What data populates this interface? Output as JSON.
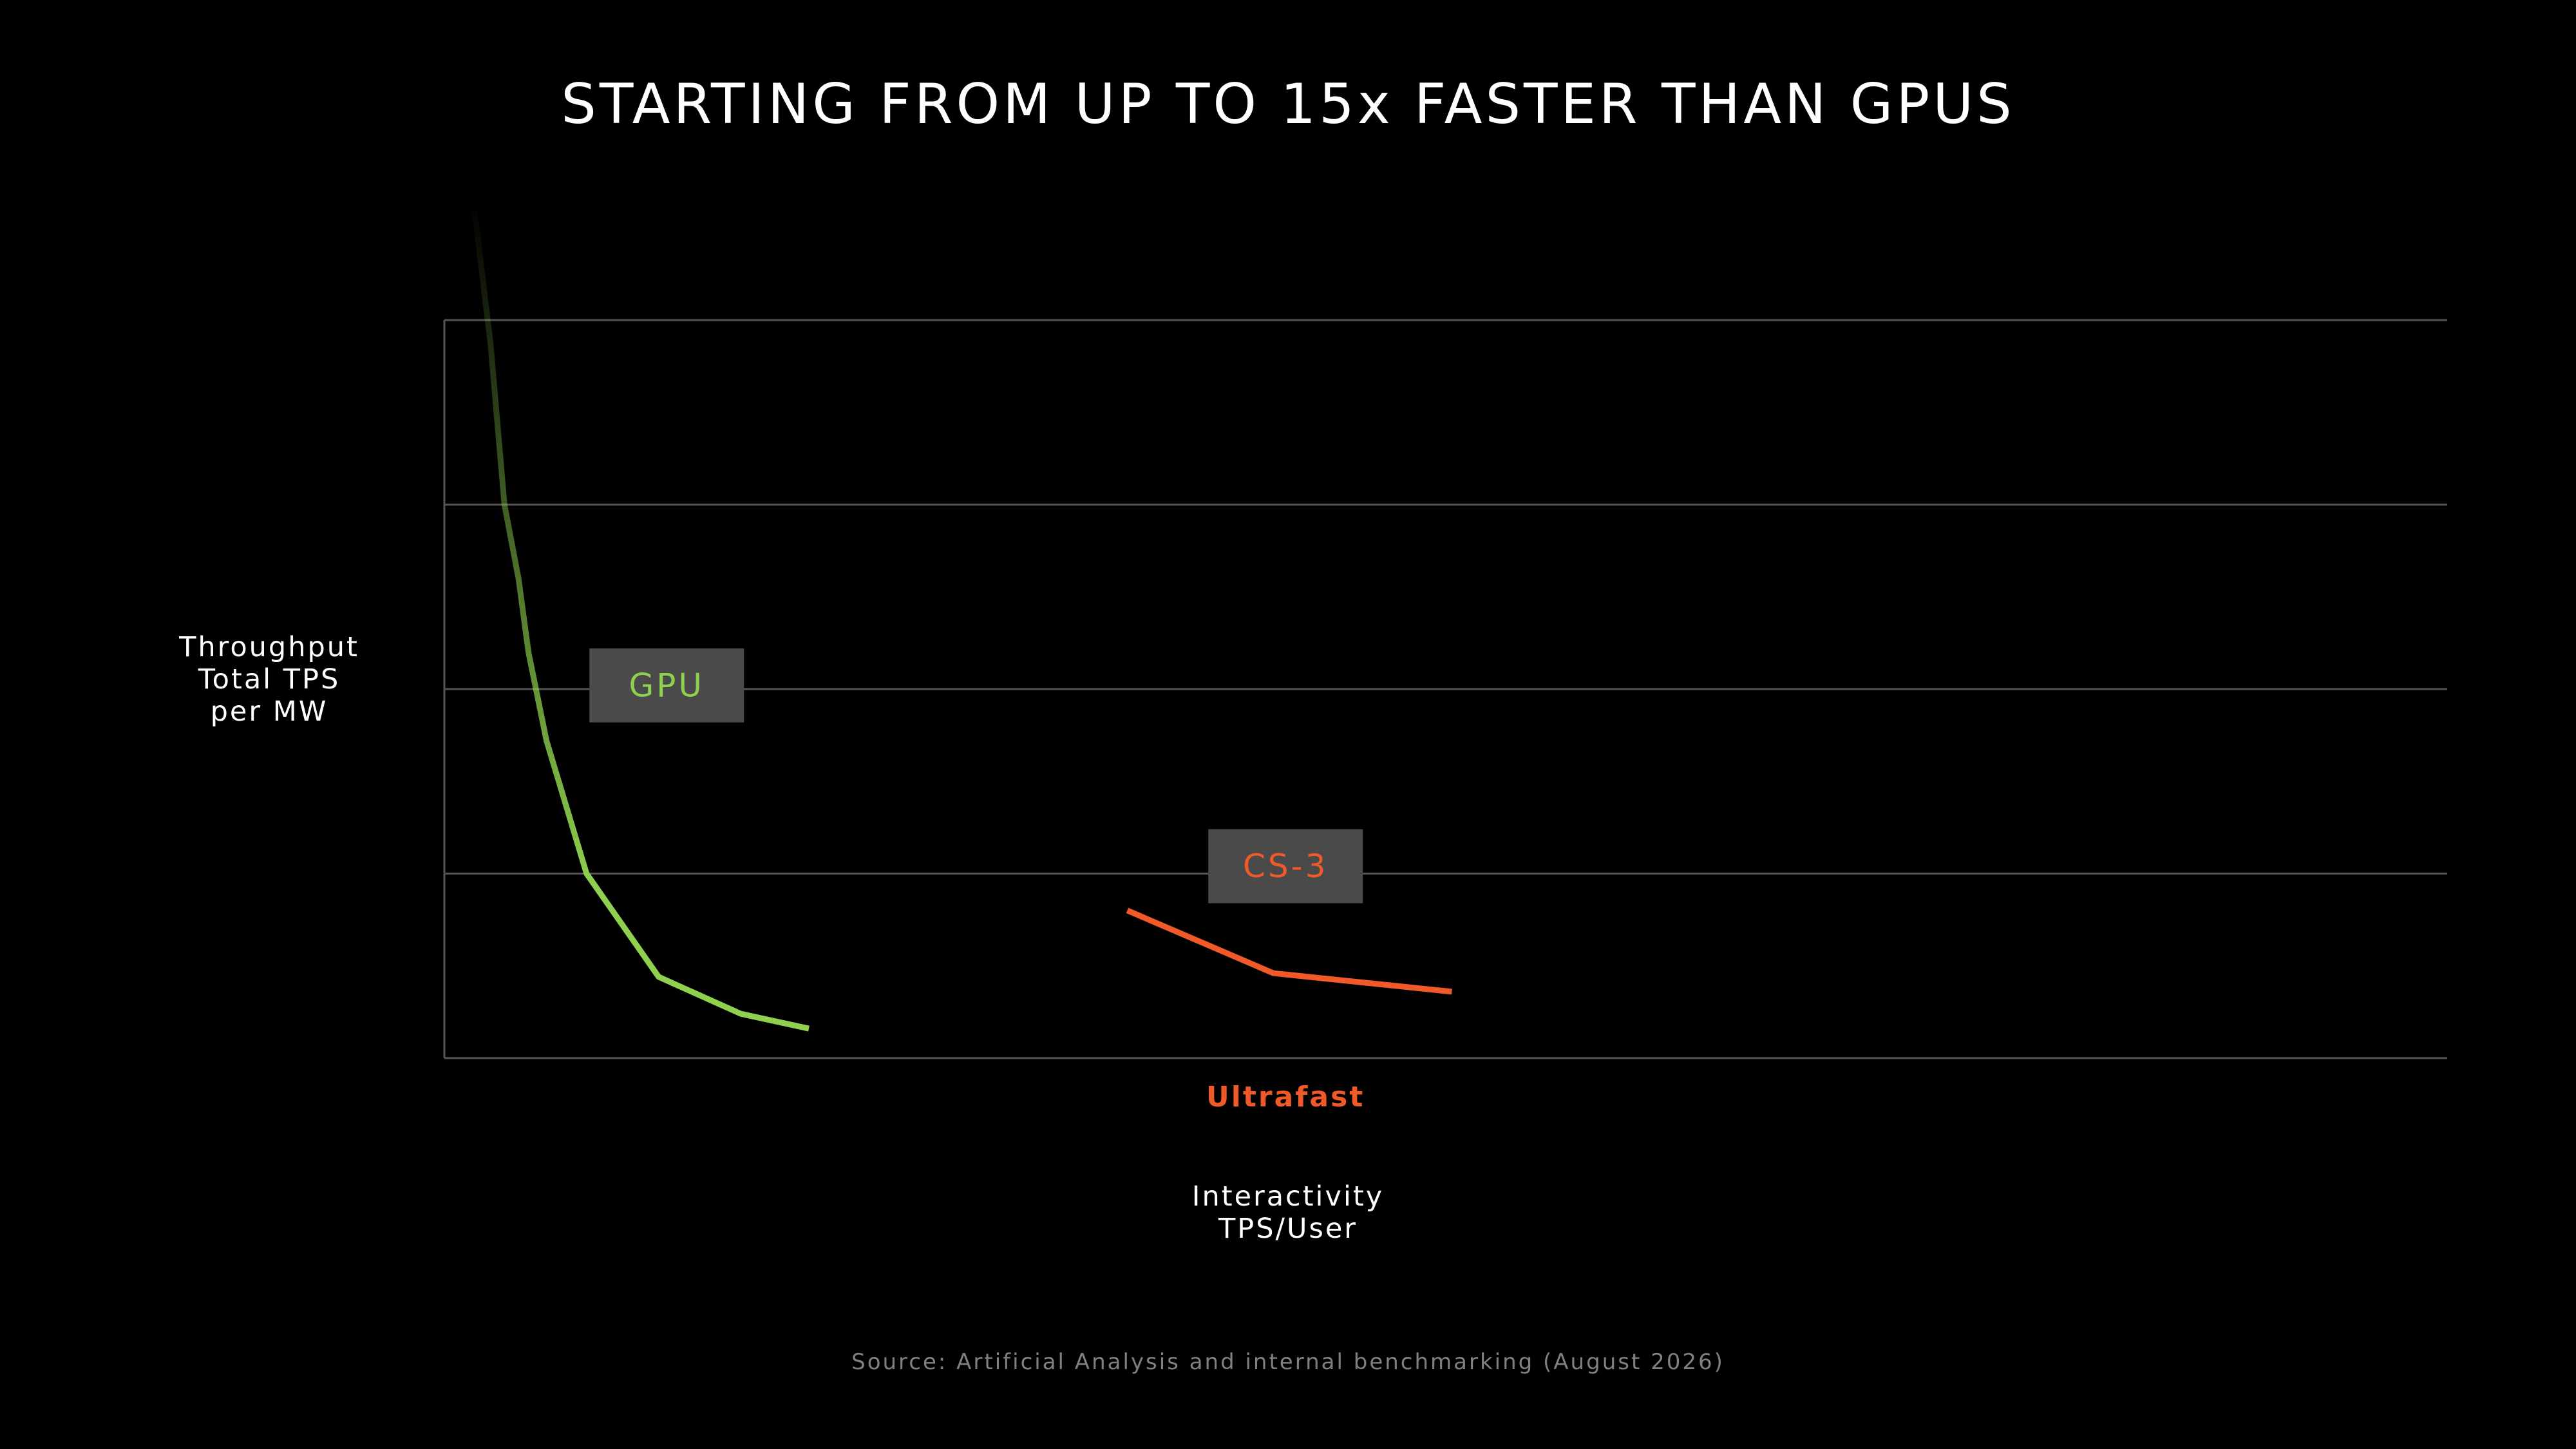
{
  "title": "STARTING FROM UP TO 15x FASTER THAN GPUS",
  "source": "Source: Artificial Analysis and internal benchmarking (August 2026)",
  "colors": {
    "background": "#000000",
    "gpu": "#8fd14f",
    "cs3": "#f05a28",
    "grid": "#555555",
    "tag_bg": "#4a4a4a",
    "source_text": "#808080"
  },
  "chart_data": {
    "type": "line",
    "title": "STARTING FROM UP TO 15x FASTER THAN GPUS",
    "ylabel_lines": [
      "Throughput",
      "Total TPS",
      "per MW"
    ],
    "xlabel_lines": [
      "Interactivity",
      "TPS/User"
    ],
    "x_tick_labels": [
      {
        "label": "Ultrafast",
        "x": 0.42
      }
    ],
    "xlim": [
      0,
      1
    ],
    "ylim": [
      0,
      1
    ],
    "grid": {
      "horizontal": true,
      "levels": [
        0.25,
        0.5,
        0.75,
        1.0
      ]
    },
    "series": [
      {
        "name": "GPU",
        "color": "#8fd14f",
        "fade_in": true,
        "points": [
          [
            0.015,
            1.15
          ],
          [
            0.023,
            0.97
          ],
          [
            0.03,
            0.75
          ],
          [
            0.037,
            0.65
          ],
          [
            0.042,
            0.55
          ],
          [
            0.051,
            0.43
          ],
          [
            0.071,
            0.25
          ],
          [
            0.107,
            0.11
          ],
          [
            0.148,
            0.06
          ],
          [
            0.182,
            0.04
          ]
        ],
        "label_anchor": {
          "x": 0.111,
          "y": 0.505
        }
      },
      {
        "name": "CS-3",
        "color": "#f05a28",
        "fade_in": false,
        "points": [
          [
            0.341,
            0.2
          ],
          [
            0.414,
            0.115
          ],
          [
            0.503,
            0.09
          ]
        ],
        "label_anchor": {
          "x": 0.42,
          "y": 0.26
        }
      }
    ]
  }
}
